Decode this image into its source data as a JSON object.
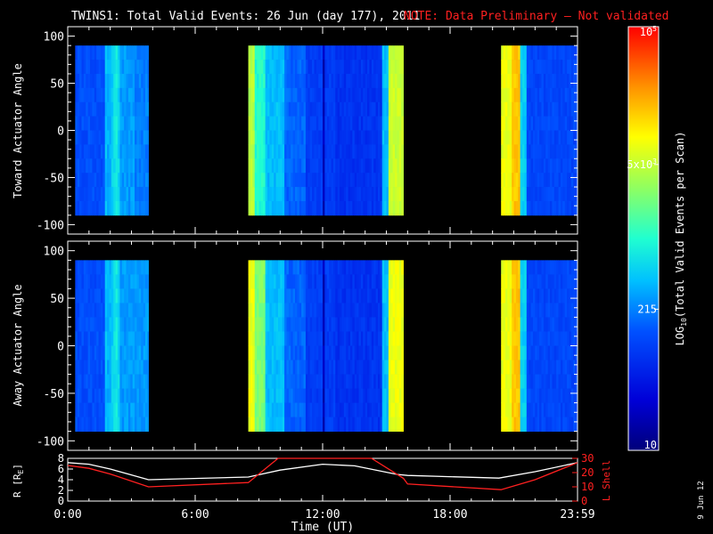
{
  "title": "TWINS1: Total Valid Events: 26 Jun (day 177), 2011",
  "note": "NOTE: Data Preliminary – Not validated",
  "date_stamp": "9 Jun 12",
  "colors": {
    "note": "#ff2020",
    "ephemeris_r": "#ffffff",
    "ephemeris_l": "#ff2020",
    "background": "#000000"
  },
  "chart_data": [
    {
      "type": "heatmap",
      "ylabel": "Toward Actuator Angle",
      "y_ticks": [
        "100",
        "50",
        "0",
        "-50",
        "-100"
      ],
      "ylim": [
        -110,
        110
      ],
      "angle_range": [
        -90,
        90
      ],
      "xlim_hours": [
        0,
        24
      ]
    },
    {
      "type": "heatmap",
      "ylabel": "Away Actuator Angle",
      "y_ticks": [
        "100",
        "50",
        "0",
        "-50",
        "-100"
      ],
      "ylim": [
        -110,
        110
      ],
      "angle_range": [
        -90,
        90
      ],
      "xlim_hours": [
        0,
        24
      ]
    },
    {
      "type": "line",
      "ylabel_left": "R [R",
      "ylabel_left_sub": "E",
      "ylabel_left_end": "]",
      "ylabel_right": "L Shell",
      "y_left_ticks": [
        "8",
        "6",
        "4",
        "2",
        "0"
      ],
      "y_left_lim": [
        0,
        8
      ],
      "y_right_ticks": [
        "30",
        "20",
        "10",
        "0"
      ],
      "y_right_lim": [
        0,
        30
      ],
      "xlabel": "Time (UT)",
      "x_ticks": [
        "0:00",
        "6:00",
        "12:00",
        "18:00",
        "23:59"
      ],
      "x_tick_hours": [
        0,
        6,
        12,
        18,
        24
      ],
      "series": [
        {
          "axis": "left",
          "color": "#ffffff",
          "x": [
            0,
            1,
            2,
            3.8,
            8.5,
            10,
            12,
            13.5,
            15.5,
            16,
            20.3,
            22,
            24
          ],
          "y": [
            7.2,
            6.9,
            6.0,
            4.0,
            4.5,
            5.8,
            6.9,
            6.6,
            5.0,
            4.8,
            4.3,
            5.5,
            7.2
          ]
        },
        {
          "axis": "right",
          "color": "#ff2020",
          "x": [
            0,
            1,
            2,
            3.8,
            8.5,
            9.9,
            14.3,
            15.8,
            16,
            20.4,
            22,
            24
          ],
          "y": [
            25,
            23,
            19,
            10,
            13,
            30,
            30,
            16,
            12,
            8,
            15,
            27
          ]
        }
      ]
    }
  ],
  "segments": [
    {
      "start": 0.35,
      "end": 3.8,
      "profile": "s1"
    },
    {
      "start": 8.5,
      "end": 15.8,
      "profile": "s2"
    },
    {
      "start": 20.4,
      "end": 24,
      "profile": "s3"
    }
  ],
  "colorbar": {
    "label_main": "LOG",
    "label_sub": "10",
    "label_rest": "(Total Valid Events per Scan)",
    "ticks": [
      {
        "value": 10,
        "label": "10"
      },
      {
        "value": 215,
        "label": "215"
      },
      {
        "value": 5000,
        "label": "5x10",
        "exp": "3"
      },
      {
        "value": 100000,
        "label": "10",
        "exp": "5"
      }
    ],
    "range": [
      10,
      100000
    ]
  }
}
